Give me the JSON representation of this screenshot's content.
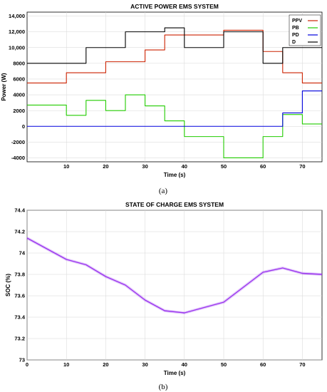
{
  "chart_data": [
    {
      "type": "line",
      "title": "ACTIVE POWER EMS SYSTEM",
      "caption": "(a)",
      "xlabel": "Time (s)",
      "ylabel": "Power (W)",
      "xlim": [
        0,
        75
      ],
      "ylim": [
        -4500,
        14500
      ],
      "xticks": [
        "10",
        "20",
        "30",
        "40",
        "50",
        "60",
        "70"
      ],
      "xtick_values": [
        10,
        20,
        30,
        40,
        50,
        60,
        70
      ],
      "yticks": [
        "-4000",
        "-2000",
        "0",
        "2000",
        "4000",
        "6000",
        "8000",
        "10,000",
        "12,000",
        "14,000"
      ],
      "ytick_values": [
        -4000,
        -2000,
        0,
        2000,
        4000,
        6000,
        8000,
        10000,
        12000,
        14000
      ],
      "grid": true,
      "legend_position": "top-right",
      "series": [
        {
          "name": "PPV",
          "color": "#cc2200",
          "x": [
            0,
            10,
            10,
            15,
            15,
            20,
            20,
            25,
            25,
            30,
            30,
            35,
            35,
            40,
            40,
            50,
            50,
            60,
            60,
            65,
            65,
            70,
            70,
            75
          ],
          "y": [
            5500,
            5500,
            6800,
            6800,
            6800,
            6800,
            8200,
            8200,
            8200,
            8200,
            9700,
            9700,
            11600,
            11600,
            11600,
            11600,
            12200,
            12200,
            9500,
            9500,
            6800,
            6800,
            5500,
            5500
          ]
        },
        {
          "name": "PB",
          "color": "#22cc00",
          "x": [
            0,
            10,
            10,
            15,
            15,
            20,
            20,
            25,
            25,
            30,
            30,
            35,
            35,
            40,
            40,
            50,
            50,
            60,
            60,
            65,
            65,
            70,
            70,
            75
          ],
          "y": [
            2700,
            2700,
            1400,
            1400,
            3300,
            3300,
            2000,
            2000,
            4000,
            4000,
            2600,
            2600,
            700,
            700,
            -1300,
            -1300,
            -4000,
            -4000,
            -1300,
            -1300,
            1500,
            1500,
            300,
            300
          ]
        },
        {
          "name": "PD",
          "color": "#0000dd",
          "x": [
            0,
            65,
            65,
            70,
            70,
            75
          ],
          "y": [
            0,
            0,
            1700,
            1700,
            4500,
            4500
          ]
        },
        {
          "name": "D",
          "color": "#000000",
          "x": [
            0,
            10,
            10,
            15,
            15,
            20,
            20,
            25,
            25,
            30,
            30,
            35,
            35,
            40,
            40,
            50,
            50,
            60,
            60,
            65,
            65,
            75
          ],
          "y": [
            8000,
            8000,
            8000,
            8000,
            10000,
            10000,
            10000,
            10000,
            12000,
            12000,
            12000,
            12000,
            12500,
            12500,
            10000,
            10000,
            12000,
            12000,
            8000,
            8000,
            10000,
            10000
          ]
        }
      ]
    },
    {
      "type": "line",
      "title": "STATE OF CHARGE EMS SYSTEM",
      "caption": "(b)",
      "xlabel": "Time (s)",
      "ylabel": "SOC (%)",
      "xlim": [
        0,
        75
      ],
      "ylim": [
        73,
        74.4
      ],
      "xticks": [
        "0",
        "10",
        "20",
        "30",
        "40",
        "50",
        "60",
        "70"
      ],
      "xtick_values": [
        0,
        10,
        20,
        30,
        40,
        50,
        60,
        70
      ],
      "yticks": [
        "73",
        "73.2",
        "73.4",
        "73.6",
        "73.8",
        "74",
        "74.2",
        "74.4"
      ],
      "ytick_values": [
        73,
        73.2,
        73.4,
        73.6,
        73.8,
        74,
        74.2,
        74.4
      ],
      "grid": true,
      "series": [
        {
          "color": "#9933ee",
          "x": [
            0,
            10,
            15,
            20,
            25,
            30,
            35,
            40,
            50,
            60,
            65,
            70,
            75
          ],
          "y": [
            74.14,
            73.94,
            73.89,
            73.78,
            73.7,
            73.56,
            73.46,
            73.44,
            73.54,
            73.82,
            73.86,
            73.81,
            73.8
          ]
        }
      ]
    }
  ]
}
